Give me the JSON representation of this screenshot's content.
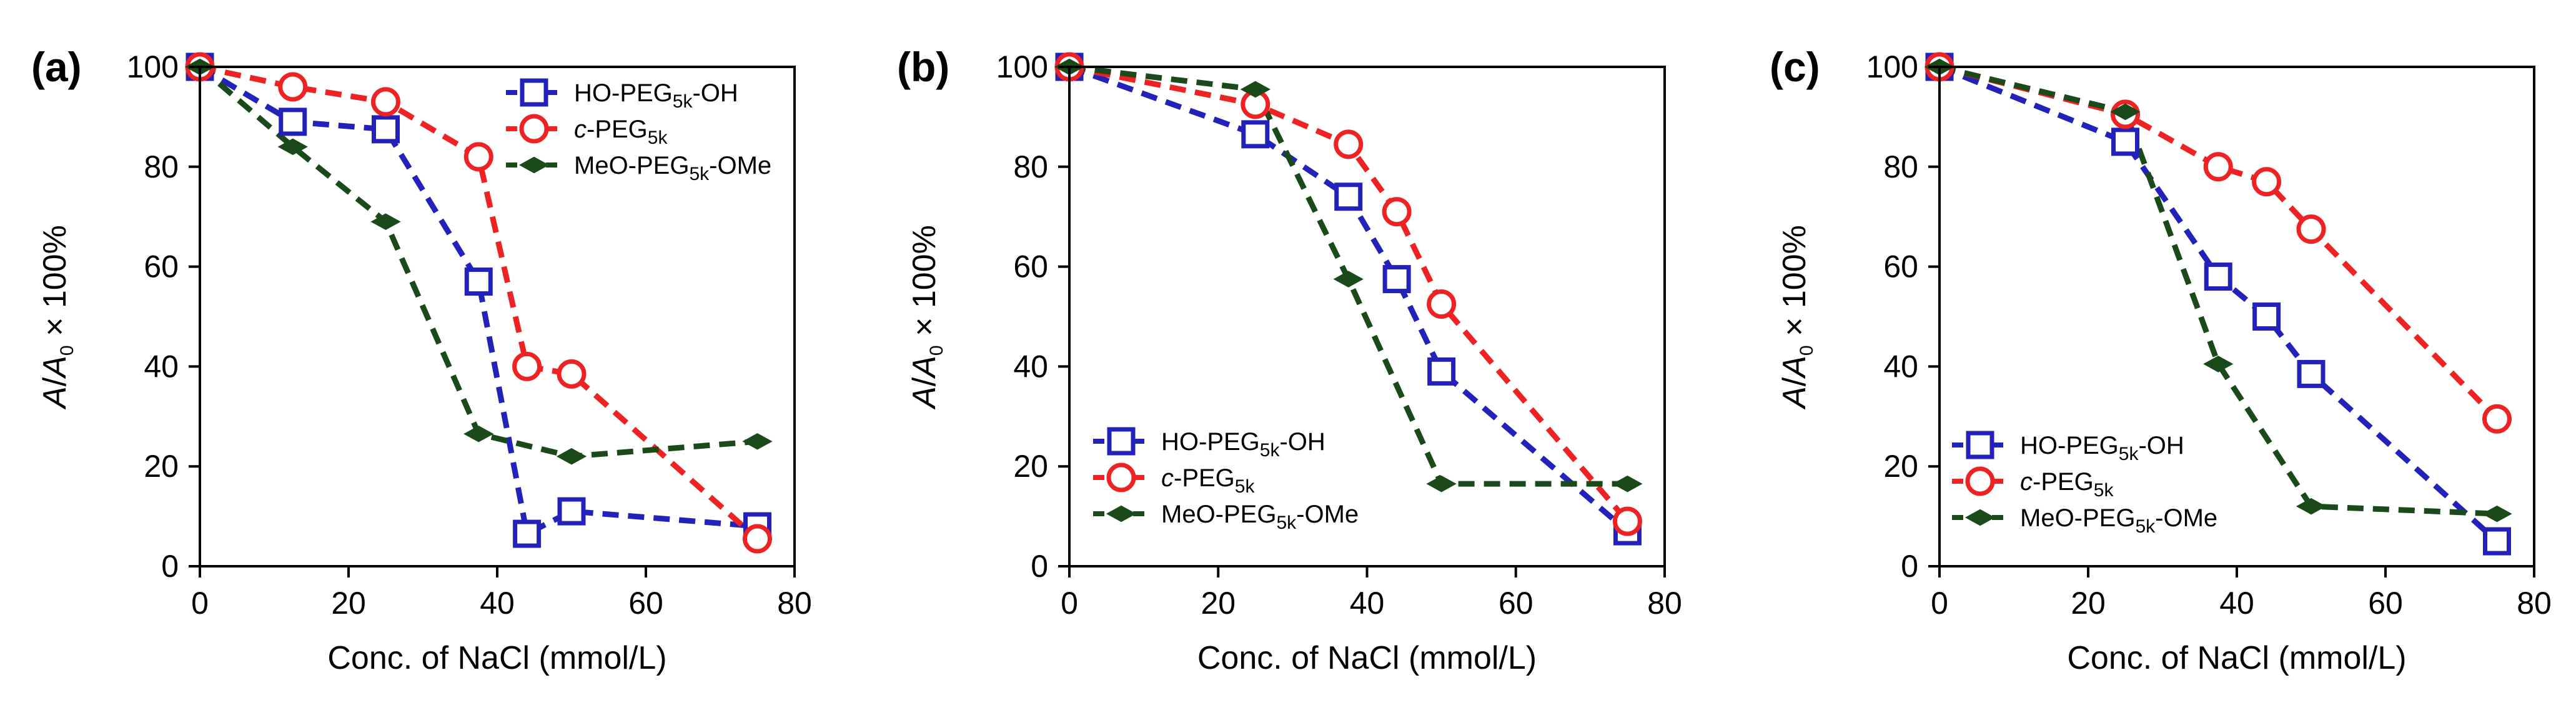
{
  "chart_data": [
    {
      "panel_label": "(a)",
      "type": "line",
      "xlabel": "Conc. of NaCl (mmol/L)",
      "ylabel": {
        "A": "A",
        "sep": "/",
        "A0": "A",
        "A0_sub": "0",
        "rest": " × 100%"
      },
      "xlim": [
        0,
        80
      ],
      "ylim": [
        0,
        100
      ],
      "xticks": [
        "0",
        "20",
        "40",
        "60",
        "80"
      ],
      "yticks": [
        "0",
        "20",
        "40",
        "60",
        "80",
        "100"
      ],
      "legend_position": "top-right",
      "series": [
        {
          "name": "HO-PEG5k-OH",
          "label_parts": [
            "",
            "HO-PEG",
            "5k",
            "-OH"
          ],
          "color": "#2222bb",
          "marker": "square",
          "x": [
            0,
            12.5,
            25,
            37.5,
            44,
            50,
            75
          ],
          "y": [
            100,
            89,
            87.5,
            57,
            6.5,
            11,
            8
          ]
        },
        {
          "name": "c-PEG5k",
          "label_parts": [
            "c",
            "-PEG",
            "5k",
            ""
          ],
          "color": "#ee2222",
          "marker": "circle",
          "x": [
            0,
            12.5,
            25,
            37.5,
            44,
            50,
            75
          ],
          "y": [
            100,
            96,
            93,
            82,
            40,
            38.5,
            5.5
          ]
        },
        {
          "name": "MeO-PEG5k-OMe",
          "label_parts": [
            "",
            "MeO-PEG",
            "5k",
            "-OMe"
          ],
          "color": "#1a4a1a",
          "marker": "diamond",
          "x": [
            0,
            12.5,
            25,
            37.5,
            50,
            75
          ],
          "y": [
            100,
            84,
            69,
            26.5,
            22,
            25
          ]
        }
      ]
    },
    {
      "panel_label": "(b)",
      "type": "line",
      "xlabel": "Conc. of NaCl (mmol/L)",
      "ylabel": {
        "A": "A",
        "sep": "/",
        "A0": "A",
        "A0_sub": "0",
        "rest": " × 100%"
      },
      "xlim": [
        0,
        80
      ],
      "ylim": [
        0,
        100
      ],
      "xticks": [
        "0",
        "20",
        "40",
        "60",
        "80"
      ],
      "yticks": [
        "0",
        "20",
        "40",
        "60",
        "80",
        "100"
      ],
      "legend_position": "bottom-left",
      "series": [
        {
          "name": "HO-PEG5k-OH",
          "label_parts": [
            "",
            "HO-PEG",
            "5k",
            "-OH"
          ],
          "color": "#2222bb",
          "marker": "square",
          "x": [
            0,
            25,
            37.5,
            44,
            50,
            75
          ],
          "y": [
            100,
            86.5,
            74,
            57.5,
            39,
            7
          ]
        },
        {
          "name": "c-PEG5k",
          "label_parts": [
            "c",
            "-PEG",
            "5k",
            ""
          ],
          "color": "#ee2222",
          "marker": "circle",
          "x": [
            0,
            25,
            37.5,
            44,
            50,
            75
          ],
          "y": [
            100,
            92.5,
            84.5,
            71,
            52.5,
            9
          ]
        },
        {
          "name": "MeO-PEG5k-OMe",
          "label_parts": [
            "",
            "MeO-PEG",
            "5k",
            "-OMe"
          ],
          "color": "#1a4a1a",
          "marker": "diamond",
          "x": [
            0,
            25,
            37.5,
            50,
            75
          ],
          "y": [
            100,
            95.5,
            57.5,
            16.5,
            16.5
          ]
        }
      ]
    },
    {
      "panel_label": "(c)",
      "type": "line",
      "xlabel": "Conc. of NaCl (mmol/L)",
      "ylabel": {
        "A": "A",
        "sep": "/",
        "A0": "A",
        "A0_sub": "0",
        "rest": " × 100%"
      },
      "xlim": [
        0,
        80
      ],
      "ylim": [
        0,
        100
      ],
      "xticks": [
        "0",
        "20",
        "40",
        "60",
        "80"
      ],
      "yticks": [
        "0",
        "20",
        "40",
        "60",
        "80",
        "100"
      ],
      "legend_position": "bottom-left",
      "series": [
        {
          "name": "HO-PEG5k-OH",
          "label_parts": [
            "",
            "HO-PEG",
            "5k",
            "-OH"
          ],
          "color": "#2222bb",
          "marker": "square",
          "x": [
            0,
            25,
            37.5,
            44,
            50,
            75
          ],
          "y": [
            100,
            85,
            58,
            50,
            38.5,
            5
          ]
        },
        {
          "name": "c-PEG5k",
          "label_parts": [
            "c",
            "-PEG",
            "5k",
            ""
          ],
          "color": "#ee2222",
          "marker": "circle",
          "x": [
            0,
            25,
            37.5,
            44,
            50,
            75
          ],
          "y": [
            100,
            90.5,
            80,
            77,
            67.5,
            29.5
          ]
        },
        {
          "name": "MeO-PEG5k-OMe",
          "label_parts": [
            "",
            "MeO-PEG",
            "5k",
            "-OMe"
          ],
          "color": "#1a4a1a",
          "marker": "diamond",
          "x": [
            0,
            25,
            37.5,
            50,
            75
          ],
          "y": [
            100,
            91,
            40.5,
            12,
            10.5
          ]
        }
      ]
    }
  ]
}
